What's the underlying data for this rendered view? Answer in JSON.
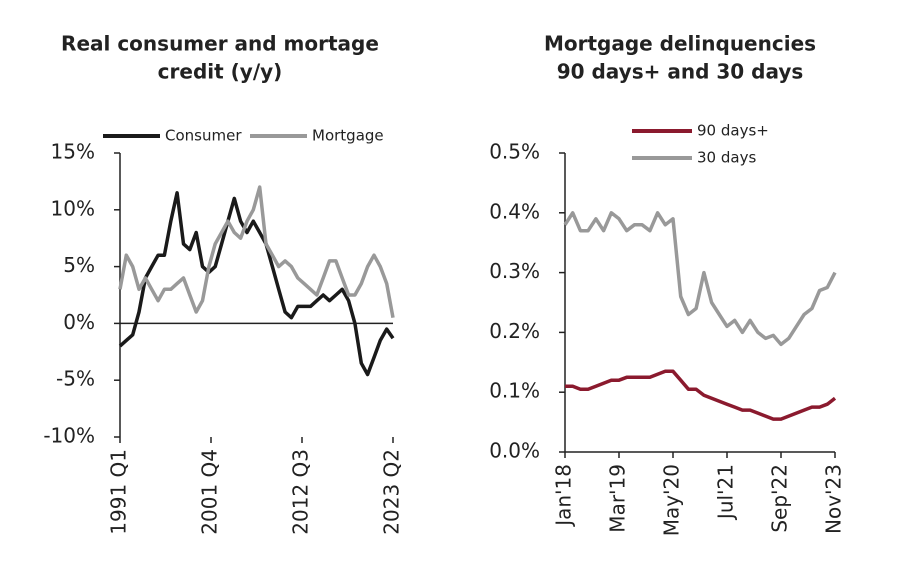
{
  "chart_data": [
    {
      "type": "line",
      "title": [
        "Real consumer and mortage",
        "credit (y/y)"
      ],
      "x": [
        0,
        3,
        6,
        9,
        12,
        15,
        18,
        21,
        24,
        27,
        30,
        33,
        36,
        39,
        42,
        45,
        48,
        51,
        54,
        57,
        60,
        63,
        66,
        69,
        72,
        75,
        78,
        81,
        84,
        87,
        90,
        93,
        96,
        99,
        102,
        105,
        108,
        111,
        114,
        117,
        120,
        123,
        126,
        129
      ],
      "xlim": [
        0,
        129
      ],
      "xticks": [
        {
          "value": 0,
          "label": "1991 Q1"
        },
        {
          "value": 43,
          "label": "2001 Q4"
        },
        {
          "value": 86,
          "label": "2012 Q3"
        },
        {
          "value": 129,
          "label": "2023 Q2"
        }
      ],
      "ylim": [
        -10,
        15
      ],
      "yticks": [
        {
          "value": -10,
          "label": "-10%"
        },
        {
          "value": -5,
          "label": "-5%"
        },
        {
          "value": 0,
          "label": "0%"
        },
        {
          "value": 5,
          "label": "5%"
        },
        {
          "value": 10,
          "label": "10%"
        },
        {
          "value": 15,
          "label": "15%"
        }
      ],
      "series": [
        {
          "name": "Consumer",
          "color": "#1a1a1a",
          "values": [
            -2,
            -1.5,
            -1,
            1,
            4,
            5,
            6,
            6,
            9,
            11.5,
            7,
            6.5,
            8,
            5,
            4.5,
            5,
            7,
            9,
            11,
            9,
            8,
            9,
            8,
            7,
            5,
            3,
            1,
            0.5,
            1.5,
            1.5,
            1.5,
            2,
            2.5,
            2,
            2.5,
            3,
            2,
            0,
            -3.5,
            -4.5,
            -3,
            -1.5,
            -0.5,
            -1.3
          ]
        },
        {
          "name": "Mortgage",
          "color": "#999999",
          "values": [
            3,
            6,
            5,
            3,
            4,
            3,
            2,
            3,
            3,
            3.5,
            4,
            2.5,
            1,
            2,
            5,
            7,
            8,
            9,
            8,
            7.5,
            9,
            10,
            12,
            7,
            6,
            5,
            5.5,
            5,
            4,
            3.5,
            3,
            2.5,
            4,
            5.5,
            5.5,
            4,
            2.5,
            2.5,
            3.5,
            5,
            6,
            5,
            3.5,
            0.5
          ]
        }
      ]
    },
    {
      "type": "line",
      "title": [
        "Mortgage delinquencies",
        "90 days+ and 30 days"
      ],
      "x": [
        0,
        2,
        4,
        6,
        8,
        10,
        12,
        14,
        16,
        18,
        20,
        22,
        24,
        26,
        28,
        30,
        32,
        34,
        36,
        38,
        40,
        42,
        44,
        46,
        48,
        50,
        52,
        54,
        56,
        58,
        60,
        62,
        64,
        66,
        68,
        70
      ],
      "xlim": [
        0,
        70
      ],
      "xticks": [
        {
          "value": 0,
          "label": "Jan'18"
        },
        {
          "value": 14,
          "label": "Mar'19"
        },
        {
          "value": 28,
          "label": "May'20"
        },
        {
          "value": 42,
          "label": "Jul'21"
        },
        {
          "value": 56,
          "label": "Sep'22"
        },
        {
          "value": 70,
          "label": "Nov'23"
        }
      ],
      "ylim": [
        0,
        0.5
      ],
      "yticks": [
        {
          "value": 0,
          "label": "0.0%"
        },
        {
          "value": 0.1,
          "label": "0.1%"
        },
        {
          "value": 0.2,
          "label": "0.2%"
        },
        {
          "value": 0.3,
          "label": "0.3%"
        },
        {
          "value": 0.4,
          "label": "0.4%"
        },
        {
          "value": 0.5,
          "label": "0.5%"
        }
      ],
      "series": [
        {
          "name": "90 days+",
          "color": "#8b1a2e",
          "values": [
            0.11,
            0.11,
            0.105,
            0.105,
            0.11,
            0.115,
            0.12,
            0.12,
            0.125,
            0.125,
            0.125,
            0.125,
            0.13,
            0.135,
            0.135,
            0.12,
            0.105,
            0.105,
            0.095,
            0.09,
            0.085,
            0.08,
            0.075,
            0.07,
            0.07,
            0.065,
            0.06,
            0.055,
            0.055,
            0.06,
            0.065,
            0.07,
            0.075,
            0.075,
            0.08,
            0.09
          ]
        },
        {
          "name": "30 days",
          "color": "#999999",
          "values": [
            0.38,
            0.4,
            0.37,
            0.37,
            0.39,
            0.37,
            0.4,
            0.39,
            0.37,
            0.38,
            0.38,
            0.37,
            0.4,
            0.38,
            0.39,
            0.26,
            0.23,
            0.24,
            0.3,
            0.25,
            0.23,
            0.21,
            0.22,
            0.2,
            0.22,
            0.2,
            0.19,
            0.195,
            0.18,
            0.19,
            0.21,
            0.23,
            0.24,
            0.27,
            0.275,
            0.3
          ]
        }
      ]
    }
  ]
}
